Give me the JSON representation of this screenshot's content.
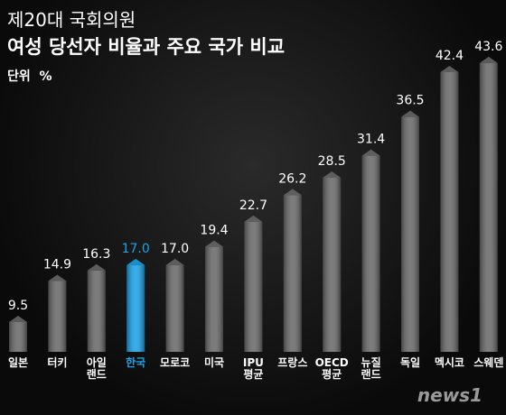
{
  "chart_data": {
    "type": "bar",
    "title": "제20대 국회의원",
    "subtitle": "여성 당선자 비율과 주요 국가 비교",
    "unit": "단위  %",
    "watermark": "news1",
    "categories": [
      "일본",
      "터키",
      "아일\n랜드",
      "한국",
      "모로코",
      "미국",
      "IPU\n평균",
      "프랑스",
      "OECD\n평균",
      "뉴질\n랜드",
      "독일",
      "멕시코",
      "스웨덴"
    ],
    "values": [
      9.5,
      14.9,
      16.3,
      17.0,
      17.0,
      19.4,
      22.7,
      26.2,
      28.5,
      31.4,
      36.5,
      42.4,
      43.6
    ],
    "value_labels": [
      "9.5",
      "14.9",
      "16.3",
      "17.0",
      "17.0",
      "19.4",
      "22.7",
      "26.2",
      "28.5",
      "31.4",
      "36.5",
      "42.4",
      "43.6"
    ],
    "colors": [
      "#6a6a6a",
      "#6a6a6a",
      "#6a6a6a",
      "#1aa3e8",
      "#6a6a6a",
      "#6a6a6a",
      "#6a6a6a",
      "#6a6a6a",
      "#6a6a6a",
      "#6a6a6a",
      "#6a6a6a",
      "#6a6a6a",
      "#6a6a6a"
    ]
  }
}
